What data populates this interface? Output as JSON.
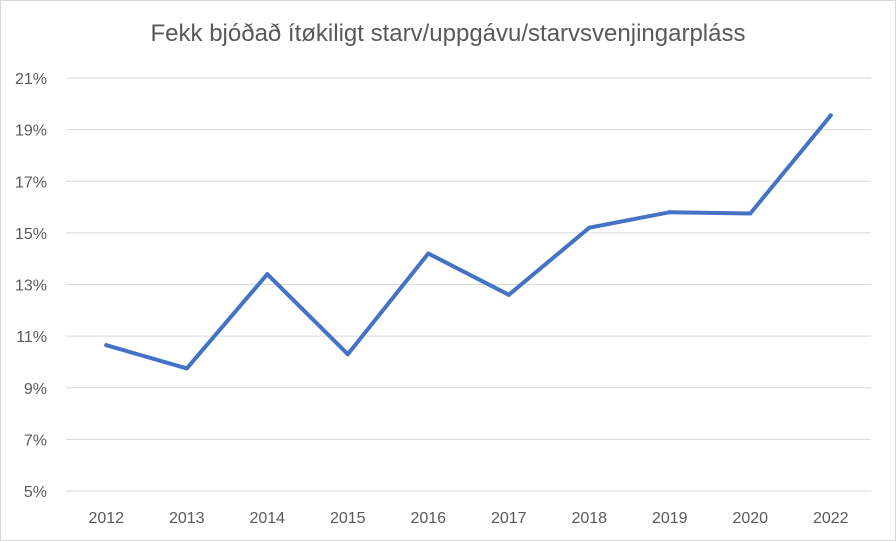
{
  "chart_data": {
    "type": "line",
    "title": "Fekk bjóðað ítøkiligt starv/uppgávu/starvsvenjingarpláss",
    "xlabel": "",
    "ylabel": "",
    "categories": [
      "2012",
      "2013",
      "2014",
      "2015",
      "2016",
      "2017",
      "2018",
      "2019",
      "2020",
      "2022"
    ],
    "series": [
      {
        "values": [
          10.65,
          9.75,
          13.4,
          10.3,
          14.2,
          12.6,
          15.2,
          15.8,
          15.75,
          19.55
        ]
      }
    ],
    "ylim": [
      5,
      21
    ],
    "yticks": [
      5,
      7,
      9,
      11,
      13,
      15,
      17,
      19,
      21
    ],
    "ytick_labels": [
      "5%",
      "7%",
      "9%",
      "11%",
      "13%",
      "15%",
      "17%",
      "19%",
      "21%"
    ],
    "grid": true,
    "legend": "none",
    "colors": {
      "line": "#4472c4",
      "grid": "#d9d9d9",
      "text": "#595959"
    }
  }
}
